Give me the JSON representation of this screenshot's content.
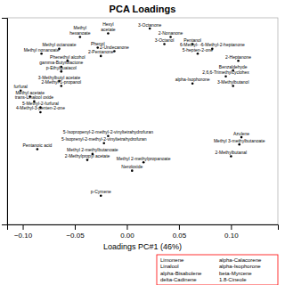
{
  "chart_data": {
    "type": "scatter",
    "title": "PCA Loadings",
    "x_label": "Loadings PC#1 (46%)",
    "xlim": [
      -0.115,
      0.145
    ],
    "ylim": [
      -0.085,
      0.088
    ],
    "xticks": [
      {
        "value": -0.1,
        "label": "−0.10"
      },
      {
        "value": -0.05,
        "label": "−0.05"
      },
      {
        "value": 0,
        "label": "0.00"
      },
      {
        "value": 0.05,
        "label": "0.05"
      },
      {
        "value": 0.1,
        "label": "0.10"
      }
    ],
    "yticks": [],
    "tick_labels": "x",
    "color": "black",
    "x": [
      -0.045,
      -0.018,
      0.022,
      0.042,
      0.036,
      -0.065,
      -0.028,
      -0.012,
      -0.025,
      -0.082,
      -0.057,
      0.063,
      0.082,
      0.068,
      0.107,
      -0.063,
      -0.063,
      0.102,
      0.095,
      -0.065,
      -0.063,
      0.063,
      0.102,
      -0.102,
      -0.093,
      -0.089,
      -0.083,
      -0.083,
      -0.018,
      -0.022,
      -0.086,
      -0.033,
      -0.038,
      0.016,
      0.005,
      0.11,
      0.108,
      0.1,
      -0.025
    ],
    "values": [
      0.072,
      0.075,
      0.079,
      0.072,
      0.066,
      0.062,
      0.063,
      0.06,
      0.056,
      0.058,
      0.052,
      0.066,
      0.062,
      0.058,
      0.052,
      0.047,
      0.043,
      0.044,
      0.039,
      0.035,
      0.031,
      0.033,
      0.031,
      0.027,
      0.022,
      0.018,
      0.013,
      0.009,
      -0.011,
      -0.017,
      -0.022,
      -0.026,
      -0.031,
      -0.033,
      -0.04,
      -0.012,
      -0.018,
      -0.028,
      -0.061
    ],
    "labels": [
      "Methyl\nhexanoate",
      "Hexyl\nacetate",
      "3-Octanone",
      "2-Nonanone",
      "3-Octanol",
      "Methyl octanoate",
      "Phenol",
      "2-Undecanone",
      "2-Pentanone",
      "Methyl nonanoate",
      "Phenethyl alcohol",
      "Pentanol",
      "6-Methyl- -6-Methyl-2-heptanone",
      "5-hepten-2-one",
      "2-Heptanone",
      "gamma-Butyrolactone",
      "p-Ethylguaiacol",
      "Benzaldehyde",
      "2,6,6-Trimethylcyclohex",
      "3-Methylbutyl acetate",
      "2-Methyl-1-propanol",
      "alpha-Isophorone",
      "3-Methylbutanol",
      "furfural",
      "Methyl acetate",
      "trans-Linalool oxide",
      "5-Methyl-2-furfural",
      "4-Methyl-3-penten-2-one",
      "5-Isopropenyl-2-methyl-2-vinyltetrahydrofuran",
      "5-Isoprenyl-2-methyl-2-vinyltetrahydrofuran",
      "Pentanoic acid",
      "Methyl 2-methylbutanoate",
      "2-Methylpropyl acetate",
      "Methyl 2-methylpropanoate",
      "Neroloxide",
      "Azulene",
      "Methyl 3-methylbutanoate",
      "2-Methylbutanal",
      "p-Cymene"
    ],
    "annotations": [
      "Limonene",
      "Linalool",
      "alpha-Bisabolene",
      "delta-Cadinene",
      "alpha-Calacorene",
      "alpha-Isophorone",
      "beta-Myrcene",
      "1.8-Cineole"
    ]
  }
}
